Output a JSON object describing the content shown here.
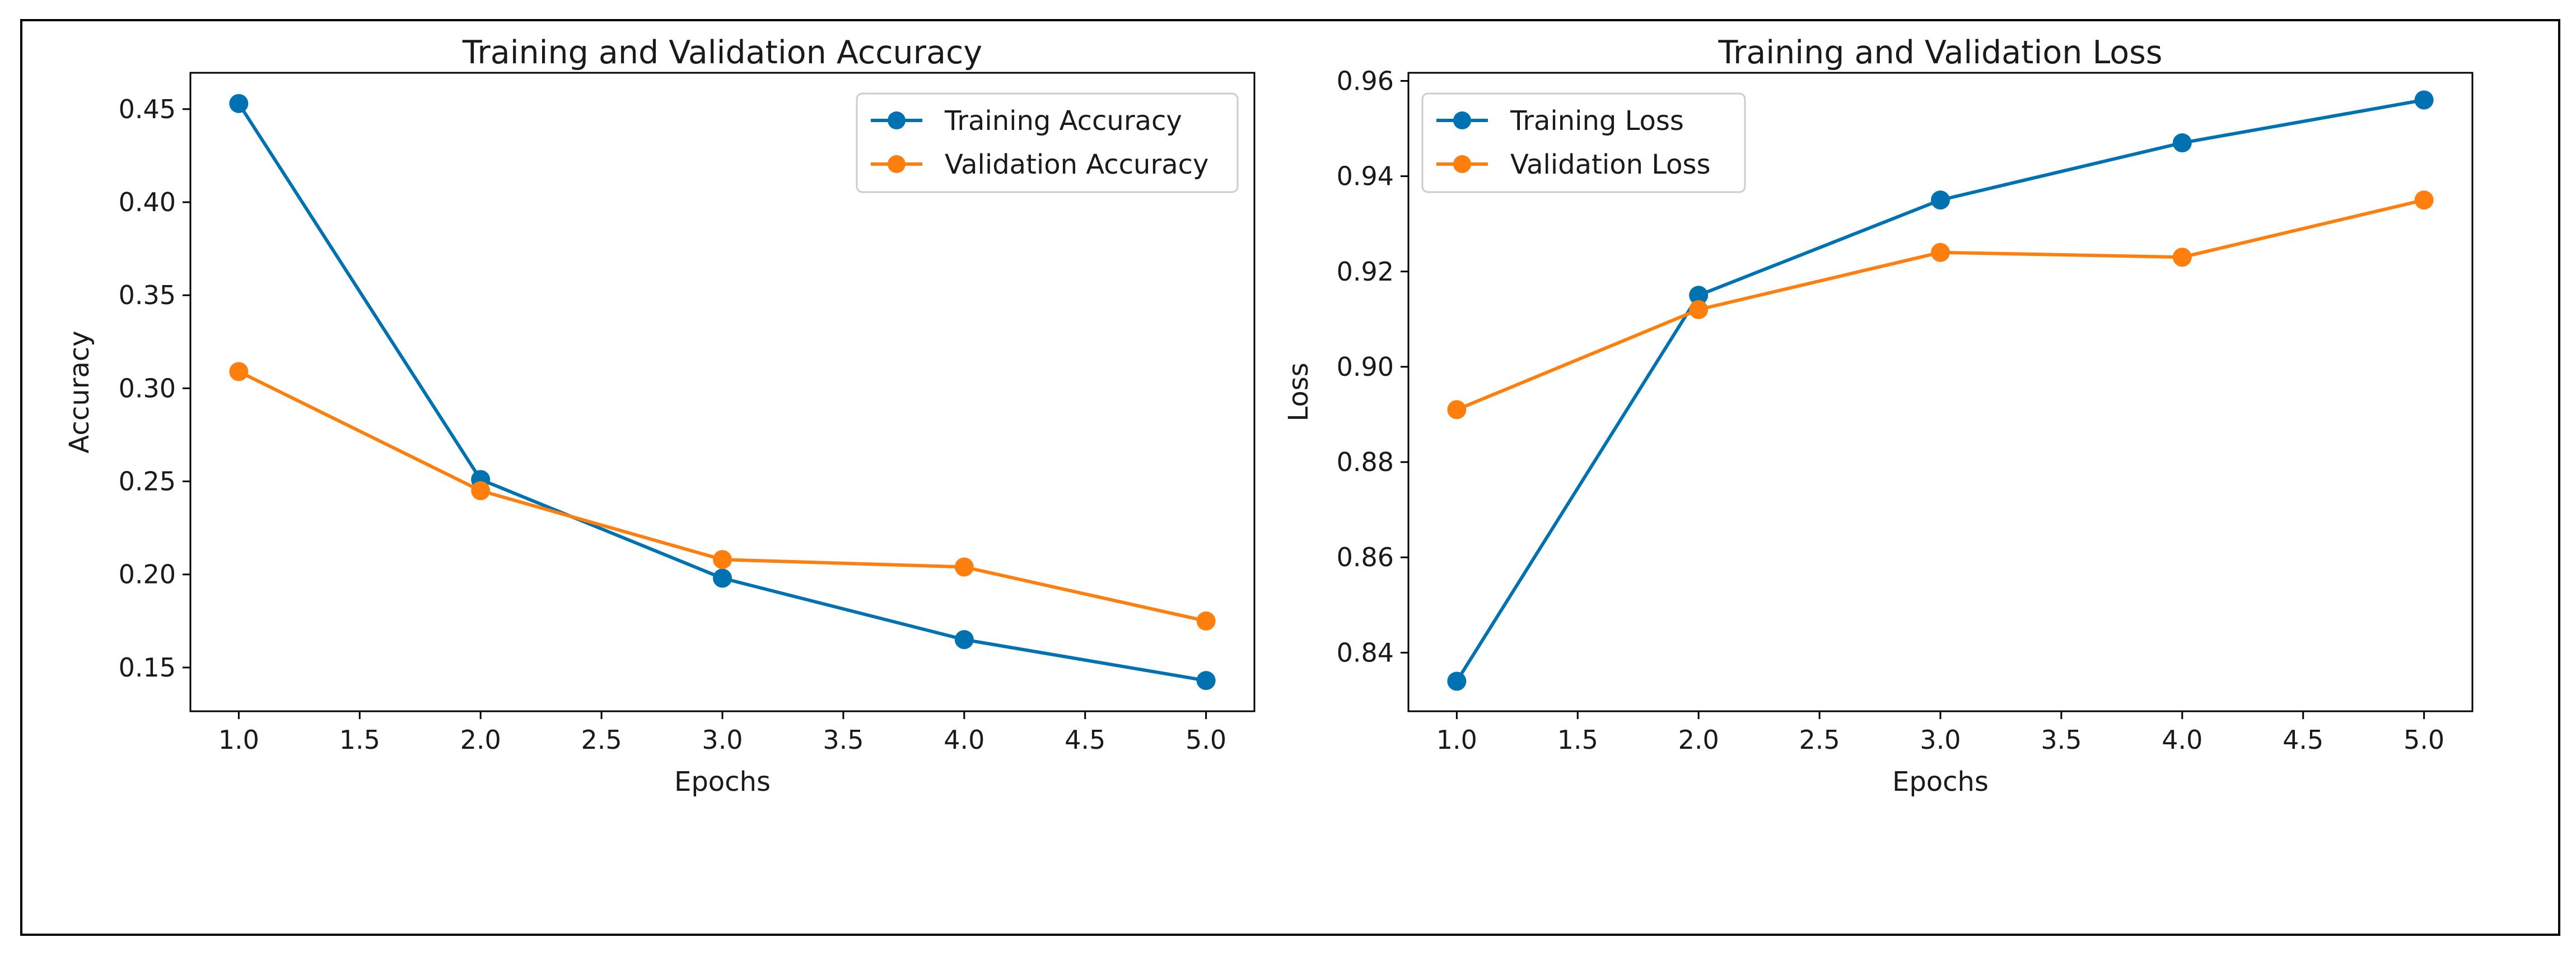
{
  "chart_data": [
    {
      "type": "line",
      "title": "Training and Validation Accuracy",
      "xlabel": "Epochs",
      "ylabel": "Accuracy",
      "x": [
        1,
        2,
        3,
        4,
        5
      ],
      "xlim": [
        0.8,
        5.2
      ],
      "ylim": [
        0.1265,
        0.4695
      ],
      "xticks": [
        1.0,
        1.5,
        2.0,
        2.5,
        3.0,
        3.5,
        4.0,
        4.5,
        5.0
      ],
      "xtick_labels": [
        "1.0",
        "1.5",
        "2.0",
        "2.5",
        "3.0",
        "3.5",
        "4.0",
        "4.5",
        "5.0"
      ],
      "yticks": [
        0.15,
        0.2,
        0.25,
        0.3,
        0.35,
        0.4,
        0.45
      ],
      "ytick_labels": [
        "0.15",
        "0.20",
        "0.25",
        "0.30",
        "0.35",
        "0.40",
        "0.45"
      ],
      "legend_position": "top-right",
      "series": [
        {
          "name": "Training Accuracy",
          "color": "#0072B2",
          "values": [
            0.453,
            0.251,
            0.198,
            0.165,
            0.143
          ]
        },
        {
          "name": "Validation Accuracy",
          "color": "#FF7F0E",
          "values": [
            0.309,
            0.245,
            0.208,
            0.204,
            0.175
          ]
        }
      ]
    },
    {
      "type": "line",
      "title": "Training and Validation Loss",
      "xlabel": "Epochs",
      "ylabel": "Loss",
      "x": [
        1,
        2,
        3,
        4,
        5
      ],
      "xlim": [
        0.8,
        5.2
      ],
      "ylim": [
        0.8277,
        0.9617
      ],
      "xticks": [
        1.0,
        1.5,
        2.0,
        2.5,
        3.0,
        3.5,
        4.0,
        4.5,
        5.0
      ],
      "xtick_labels": [
        "1.0",
        "1.5",
        "2.0",
        "2.5",
        "3.0",
        "3.5",
        "4.0",
        "4.5",
        "5.0"
      ],
      "yticks": [
        0.84,
        0.86,
        0.88,
        0.9,
        0.92,
        0.94,
        0.96
      ],
      "ytick_labels": [
        "0.84",
        "0.86",
        "0.88",
        "0.90",
        "0.92",
        "0.94",
        "0.96"
      ],
      "legend_position": "top-left",
      "series": [
        {
          "name": "Training Loss",
          "color": "#0072B2",
          "values": [
            0.834,
            0.915,
            0.935,
            0.947,
            0.956
          ]
        },
        {
          "name": "Validation Loss",
          "color": "#FF7F0E",
          "values": [
            0.891,
            0.912,
            0.924,
            0.923,
            0.935
          ]
        }
      ]
    }
  ]
}
